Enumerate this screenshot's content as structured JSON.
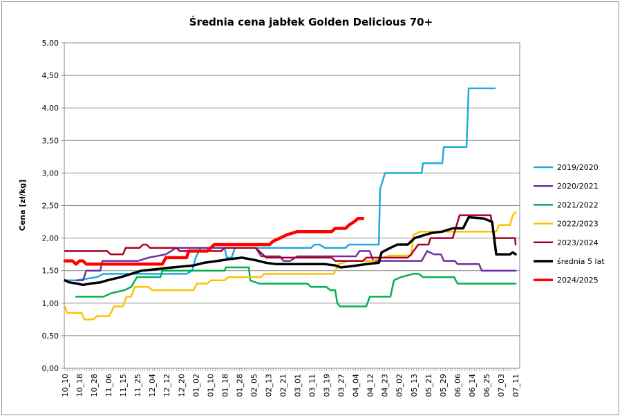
{
  "chart_data": {
    "type": "line",
    "title": "Średnia cena jabłek Golden Delicious 70+",
    "xlabel": "",
    "ylabel": "Cena [zł/kg]",
    "ylim": [
      0,
      5
    ],
    "yticks": [
      "0,00",
      "0,50",
      "1,00",
      "1,50",
      "2,00",
      "2,50",
      "3,00",
      "3,50",
      "4,00",
      "4,50",
      "5,00"
    ],
    "ytick_values": [
      0,
      0.5,
      1,
      1.5,
      2,
      2.5,
      3,
      3.5,
      4,
      4.5,
      5
    ],
    "categories": [
      "10_10",
      "10_18",
      "10_28",
      "11_06",
      "11_15",
      "11_25",
      "12_04",
      "12_12",
      "12_20",
      "01_02",
      "01_10",
      "01_18",
      "01_28",
      "02_05",
      "02_13",
      "02_21",
      "03_01",
      "03_11",
      "03_19",
      "03_27",
      "04_04",
      "04_12",
      "04_23",
      "05_02",
      "05_13",
      "05_21",
      "05_29",
      "06_06",
      "06_14",
      "06_25",
      "07_03",
      "07_11"
    ],
    "x_note": "x values are positions on the category axis (0 = 10_10, 31 = 07_11)",
    "grid": true,
    "legend_position": "right",
    "series": [
      {
        "name": "2019/2020",
        "color": "#1EA9E1",
        "width": 2.5,
        "points": [
          [
            0,
            1.35
          ],
          [
            0.76,
            1.35
          ],
          [
            2.19,
            1.4
          ],
          [
            2.66,
            1.45
          ],
          [
            8.37,
            1.45
          ],
          [
            8.75,
            1.5
          ],
          [
            8.99,
            1.7
          ],
          [
            9.32,
            1.85
          ],
          [
            10.98,
            1.85
          ],
          [
            11.13,
            1.7
          ],
          [
            11.46,
            1.7
          ],
          [
            11.7,
            1.85
          ],
          [
            16.93,
            1.85
          ],
          [
            17.17,
            1.9
          ],
          [
            17.5,
            1.9
          ],
          [
            17.88,
            1.85
          ],
          [
            19.31,
            1.85
          ],
          [
            19.54,
            1.9
          ],
          [
            21.59,
            1.9
          ],
          [
            21.68,
            2.75
          ],
          [
            22.02,
            3.0
          ],
          [
            24.54,
            3.0
          ],
          [
            24.63,
            3.15
          ],
          [
            25.96,
            3.15
          ],
          [
            26.06,
            3.4
          ],
          [
            27.63,
            3.4
          ],
          [
            27.77,
            4.3
          ],
          [
            29.58,
            4.3
          ]
        ]
      },
      {
        "name": "2020/2021",
        "color": "#7030A0",
        "width": 2.5,
        "points": [
          [
            0.76,
            1.35
          ],
          [
            1.24,
            1.35
          ],
          [
            1.47,
            1.5
          ],
          [
            2.43,
            1.5
          ],
          [
            2.57,
            1.65
          ],
          [
            5.04,
            1.65
          ],
          [
            5.75,
            1.7
          ],
          [
            6.94,
            1.75
          ],
          [
            7.66,
            1.85
          ],
          [
            13.12,
            1.85
          ],
          [
            13.5,
            1.72
          ],
          [
            14.79,
            1.72
          ],
          [
            15.03,
            1.65
          ],
          [
            15.5,
            1.65
          ],
          [
            15.98,
            1.72
          ],
          [
            20.02,
            1.72
          ],
          [
            20.26,
            1.8
          ],
          [
            20.97,
            1.8
          ],
          [
            21.21,
            1.65
          ],
          [
            24.54,
            1.65
          ],
          [
            24.92,
            1.8
          ],
          [
            25.39,
            1.75
          ],
          [
            25.87,
            1.75
          ],
          [
            26.06,
            1.65
          ],
          [
            26.82,
            1.65
          ],
          [
            27.01,
            1.6
          ],
          [
            28.49,
            1.6
          ],
          [
            28.67,
            1.5
          ],
          [
            31,
            1.5
          ]
        ]
      },
      {
        "name": "2021/2022",
        "color": "#00B050",
        "width": 2.5,
        "points": [
          [
            0.76,
            1.1
          ],
          [
            2.66,
            1.1
          ],
          [
            3.14,
            1.15
          ],
          [
            4.09,
            1.2
          ],
          [
            4.56,
            1.25
          ],
          [
            4.95,
            1.4
          ],
          [
            6.56,
            1.4
          ],
          [
            6.7,
            1.5
          ],
          [
            10.98,
            1.5
          ],
          [
            11.08,
            1.55
          ],
          [
            12.65,
            1.55
          ],
          [
            12.74,
            1.35
          ],
          [
            13.36,
            1.3
          ],
          [
            16.69,
            1.3
          ],
          [
            16.93,
            1.25
          ],
          [
            17.97,
            1.25
          ],
          [
            18.26,
            1.2
          ],
          [
            18.59,
            1.2
          ],
          [
            18.74,
            1.0
          ],
          [
            18.93,
            0.95
          ],
          [
            20.73,
            0.95
          ],
          [
            20.97,
            1.1
          ],
          [
            22.39,
            1.1
          ],
          [
            22.63,
            1.35
          ],
          [
            23.11,
            1.4
          ],
          [
            23.97,
            1.45
          ],
          [
            24.35,
            1.45
          ],
          [
            24.63,
            1.4
          ],
          [
            26.77,
            1.4
          ],
          [
            27.01,
            1.3
          ],
          [
            31,
            1.3
          ]
        ]
      },
      {
        "name": "2022/2023",
        "color": "#FFC000",
        "width": 2.5,
        "points": [
          [
            0,
            0.95
          ],
          [
            0.15,
            0.85
          ],
          [
            1.14,
            0.85
          ],
          [
            1.33,
            0.75
          ],
          [
            1.95,
            0.75
          ],
          [
            2.19,
            0.8
          ],
          [
            3.04,
            0.8
          ],
          [
            3.38,
            0.95
          ],
          [
            3.99,
            0.95
          ],
          [
            4.23,
            1.1
          ],
          [
            4.56,
            1.1
          ],
          [
            4.8,
            1.25
          ],
          [
            5.75,
            1.25
          ],
          [
            5.99,
            1.2
          ],
          [
            8.84,
            1.2
          ],
          [
            9.08,
            1.3
          ],
          [
            9.8,
            1.3
          ],
          [
            10.03,
            1.35
          ],
          [
            10.98,
            1.35
          ],
          [
            11.22,
            1.4
          ],
          [
            13.5,
            1.4
          ],
          [
            13.69,
            1.45
          ],
          [
            18.5,
            1.45
          ],
          [
            18.83,
            1.6
          ],
          [
            19.54,
            1.65
          ],
          [
            21.21,
            1.65
          ],
          [
            22.3,
            1.73
          ],
          [
            23.82,
            1.73
          ],
          [
            23.97,
            2.05
          ],
          [
            24.44,
            2.1
          ],
          [
            29.67,
            2.1
          ],
          [
            29.86,
            2.2
          ],
          [
            30.62,
            2.2
          ],
          [
            30.81,
            2.35
          ],
          [
            31,
            2.4
          ]
        ]
      },
      {
        "name": "2023/2024",
        "color": "#A50021",
        "width": 2.5,
        "points": [
          [
            0,
            1.8
          ],
          [
            2.9,
            1.8
          ],
          [
            3.14,
            1.75
          ],
          [
            3.99,
            1.75
          ],
          [
            4.18,
            1.85
          ],
          [
            5.14,
            1.85
          ],
          [
            5.37,
            1.9
          ],
          [
            5.61,
            1.9
          ],
          [
            5.85,
            1.85
          ],
          [
            7.66,
            1.85
          ],
          [
            7.89,
            1.8
          ],
          [
            10.75,
            1.8
          ],
          [
            10.98,
            1.85
          ],
          [
            13.12,
            1.85
          ],
          [
            13.84,
            1.7
          ],
          [
            18.35,
            1.7
          ],
          [
            18.59,
            1.65
          ],
          [
            20.49,
            1.65
          ],
          [
            20.73,
            1.7
          ],
          [
            23.58,
            1.7
          ],
          [
            23.82,
            1.75
          ],
          [
            24.3,
            1.9
          ],
          [
            25.01,
            1.9
          ],
          [
            25.15,
            2.0
          ],
          [
            26.68,
            2.0
          ],
          [
            27.15,
            2.35
          ],
          [
            29.29,
            2.35
          ],
          [
            29.53,
            2.0
          ],
          [
            30.96,
            2.0
          ],
          [
            31,
            1.9
          ]
        ]
      },
      {
        "name": "średnia 5 lat",
        "color": "#000000",
        "width": 3.5,
        "points": [
          [
            0,
            1.35
          ],
          [
            0.29,
            1.32
          ],
          [
            0.86,
            1.3
          ],
          [
            1.24,
            1.28
          ],
          [
            1.71,
            1.3
          ],
          [
            2.43,
            1.32
          ],
          [
            2.9,
            1.35
          ],
          [
            3.85,
            1.4
          ],
          [
            4.56,
            1.45
          ],
          [
            5.28,
            1.5
          ],
          [
            6.23,
            1.52
          ],
          [
            7.42,
            1.55
          ],
          [
            8.84,
            1.58
          ],
          [
            9.56,
            1.62
          ],
          [
            10.51,
            1.65
          ],
          [
            11.46,
            1.68
          ],
          [
            12.17,
            1.7
          ],
          [
            13.12,
            1.66
          ],
          [
            13.84,
            1.62
          ],
          [
            14.55,
            1.6
          ],
          [
            15.5,
            1.6
          ],
          [
            16.45,
            1.6
          ],
          [
            17.88,
            1.6
          ],
          [
            18.59,
            1.58
          ],
          [
            18.97,
            1.55
          ],
          [
            19.78,
            1.57
          ],
          [
            20.73,
            1.6
          ],
          [
            21.59,
            1.62
          ],
          [
            21.78,
            1.78
          ],
          [
            22.39,
            1.85
          ],
          [
            22.87,
            1.9
          ],
          [
            23.58,
            1.9
          ],
          [
            24.06,
            2.0
          ],
          [
            24.77,
            2.05
          ],
          [
            25.25,
            2.08
          ],
          [
            25.96,
            2.1
          ],
          [
            26.68,
            2.15
          ],
          [
            27.39,
            2.15
          ],
          [
            27.77,
            2.32
          ],
          [
            28.81,
            2.3
          ],
          [
            29.39,
            2.25
          ],
          [
            29.67,
            1.75
          ],
          [
            30.62,
            1.75
          ],
          [
            30.81,
            1.78
          ],
          [
            31,
            1.75
          ]
        ]
      },
      {
        "name": "2024/2025",
        "color": "#FF0000",
        "width": 4.5,
        "points": [
          [
            0,
            1.65
          ],
          [
            0.52,
            1.65
          ],
          [
            0.76,
            1.6
          ],
          [
            1.0,
            1.65
          ],
          [
            1.24,
            1.65
          ],
          [
            1.47,
            1.6
          ],
          [
            6.7,
            1.6
          ],
          [
            6.94,
            1.7
          ],
          [
            8.37,
            1.7
          ],
          [
            8.51,
            1.8
          ],
          [
            9.8,
            1.8
          ],
          [
            10.27,
            1.9
          ],
          [
            14.08,
            1.9
          ],
          [
            14.31,
            1.95
          ],
          [
            14.79,
            2.0
          ],
          [
            15.26,
            2.05
          ],
          [
            15.98,
            2.1
          ],
          [
            18.35,
            2.1
          ],
          [
            18.59,
            2.15
          ],
          [
            19.31,
            2.15
          ],
          [
            19.54,
            2.2
          ],
          [
            19.88,
            2.25
          ],
          [
            20.16,
            2.3
          ],
          [
            20.49,
            2.3
          ]
        ]
      }
    ]
  }
}
